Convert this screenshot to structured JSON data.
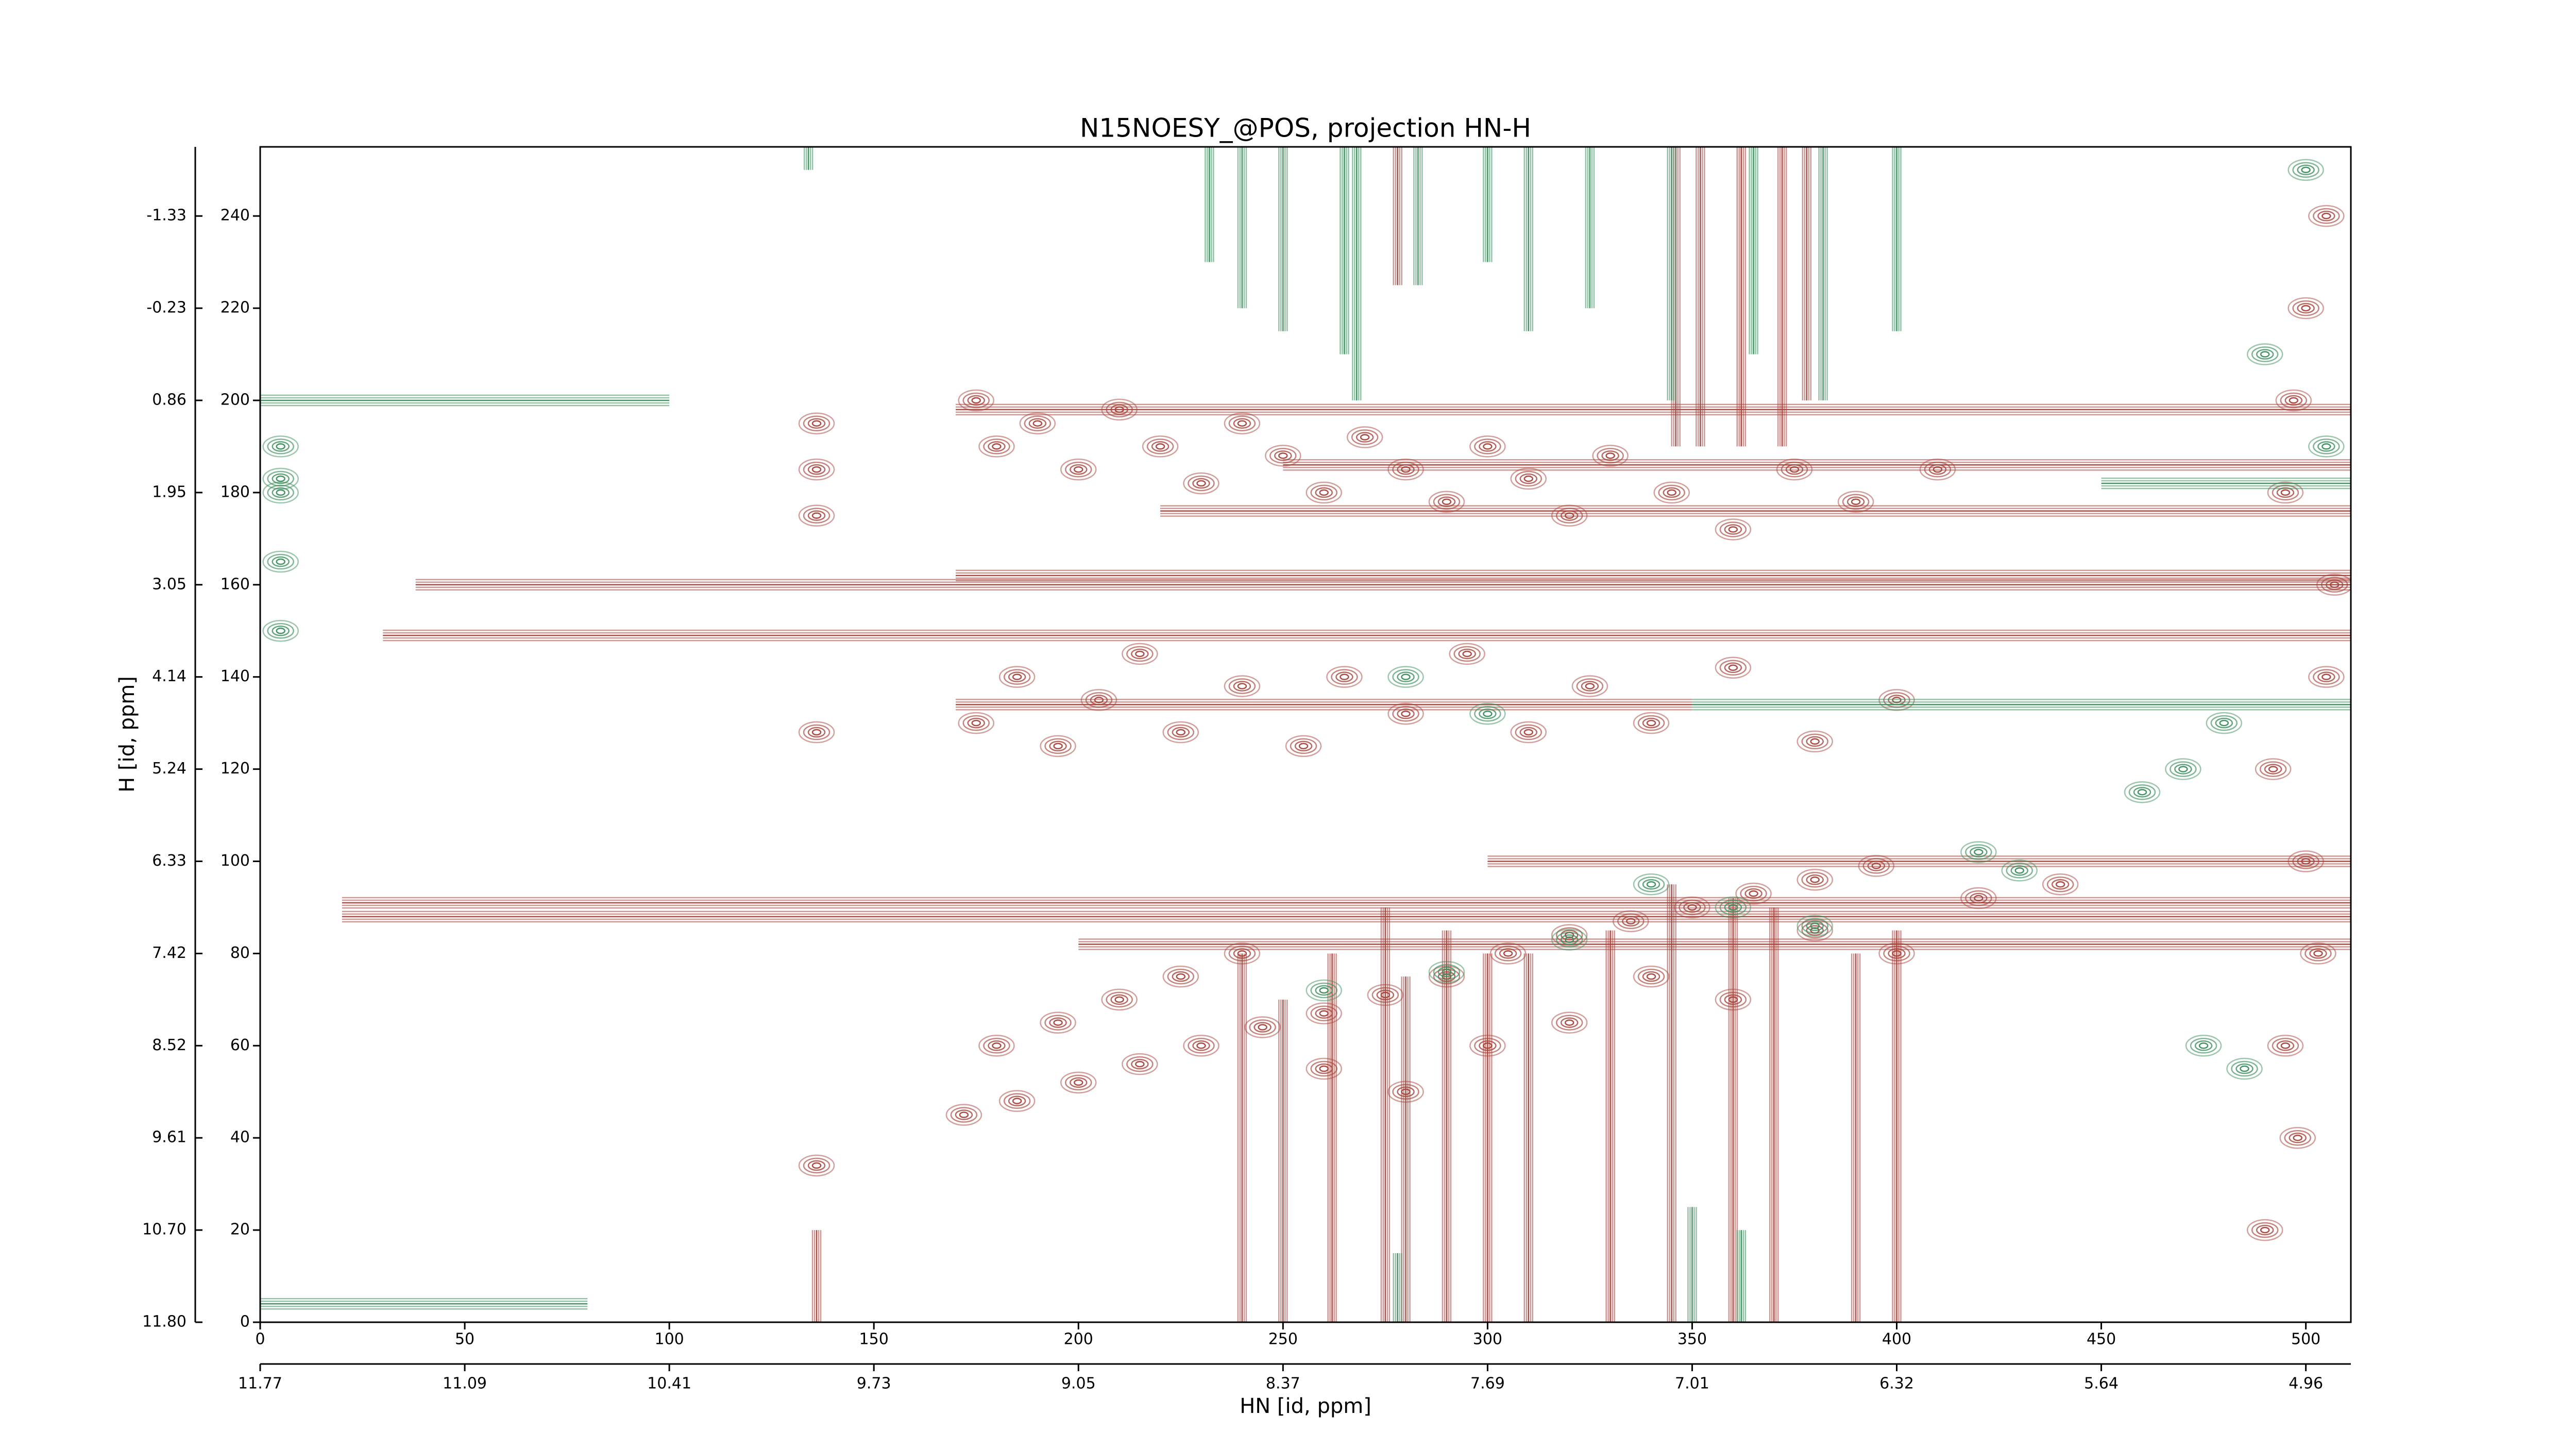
{
  "chart_data": {
    "type": "contour",
    "title": "N15NOESY_@POS, projection HN-H",
    "xlabel": "HN [id, ppm]",
    "ylabel": "H [id, ppm]",
    "xlim": [
      0,
      511
    ],
    "ylim": [
      0,
      255
    ],
    "xticks": [
      0,
      50,
      100,
      150,
      200,
      250,
      300,
      350,
      400,
      450,
      500
    ],
    "yticks": [
      0,
      20,
      40,
      60,
      80,
      100,
      120,
      140,
      160,
      180,
      200,
      220,
      240
    ],
    "x2ticks": [
      {
        "value": 0,
        "label": "11.77"
      },
      {
        "value": 50,
        "label": "11.09"
      },
      {
        "value": 100,
        "label": "10.41"
      },
      {
        "value": 150,
        "label": "9.73"
      },
      {
        "value": 200,
        "label": "9.05"
      },
      {
        "value": 250,
        "label": "8.37"
      },
      {
        "value": 300,
        "label": "7.69"
      },
      {
        "value": 350,
        "label": "7.01"
      },
      {
        "value": 400,
        "label": "6.32"
      },
      {
        "value": 450,
        "label": "5.64"
      },
      {
        "value": 500,
        "label": "4.96"
      }
    ],
    "y2ticks": [
      {
        "value": 0,
        "label": "11.80"
      },
      {
        "value": 20,
        "label": "10.70"
      },
      {
        "value": 40,
        "label": "9.61"
      },
      {
        "value": 60,
        "label": "8.52"
      },
      {
        "value": 80,
        "label": "7.42"
      },
      {
        "value": 100,
        "label": "6.33"
      },
      {
        "value": 120,
        "label": "5.24"
      },
      {
        "value": 140,
        "label": "4.14"
      },
      {
        "value": 160,
        "label": "3.05"
      },
      {
        "value": 180,
        "label": "1.95"
      },
      {
        "value": 200,
        "label": "0.86"
      },
      {
        "value": 220,
        "label": "-0.23"
      },
      {
        "value": 240,
        "label": "-1.33"
      }
    ],
    "contours": [
      {
        "color": "#a8423a",
        "peaks": {
          "x": [
            175,
            180,
            190,
            200,
            210,
            220,
            230,
            240,
            250,
            260,
            270,
            280,
            290,
            300,
            310,
            320,
            330,
            345,
            360,
            375,
            390,
            410,
            175,
            185,
            195,
            205,
            215,
            225,
            240,
            255,
            265,
            280,
            295,
            310,
            325,
            340,
            360,
            380,
            400,
            172,
            185,
            200,
            215,
            230,
            245,
            260,
            275,
            290,
            305,
            320,
            335,
            350,
            365,
            380,
            395,
            180,
            195,
            210,
            225,
            240,
            260,
            280,
            300,
            320,
            340,
            360,
            380,
            400,
            420,
            440,
            136,
            136,
            136,
            136,
            136,
            490,
            495,
            500,
            505,
            495,
            500,
            505,
            498,
            503,
            492,
            507,
            497
          ],
          "y": [
            200,
            190,
            195,
            185,
            198,
            190,
            182,
            195,
            188,
            180,
            192,
            185,
            178,
            190,
            183,
            175,
            188,
            180,
            172,
            185,
            178,
            185,
            130,
            140,
            125,
            135,
            145,
            128,
            138,
            125,
            140,
            132,
            145,
            128,
            138,
            130,
            142,
            126,
            135,
            45,
            48,
            52,
            56,
            60,
            64,
            67,
            71,
            75,
            80,
            84,
            87,
            90,
            93,
            96,
            99,
            60,
            65,
            70,
            75,
            80,
            55,
            50,
            60,
            65,
            75,
            70,
            85,
            80,
            92,
            95,
            34,
            128,
            175,
            185,
            195,
            20,
            60,
            100,
            140,
            180,
            220,
            240,
            40,
            80,
            120,
            160,
            200
          ]
        },
        "h_ridges": {
          "y": [
            160,
            162,
            149,
            91,
            88,
            198,
            186,
            176,
            134,
            100,
            82
          ],
          "x_from": [
            38,
            170,
            30,
            20,
            20,
            170,
            250,
            220,
            170,
            300,
            200
          ],
          "x_to": [
            511,
            511,
            511,
            511,
            511,
            511,
            511,
            511,
            350,
            511,
            511
          ]
        },
        "v_ridges": {
          "x": [
            240,
            250,
            262,
            275,
            280,
            290,
            300,
            310,
            330,
            345,
            360,
            370,
            390,
            400,
            278,
            346,
            352,
            362,
            372,
            378,
            136
          ],
          "y_from": [
            0,
            0,
            0,
            0,
            0,
            0,
            0,
            0,
            0,
            0,
            0,
            0,
            0,
            0,
            225,
            190,
            190,
            190,
            190,
            200,
            0
          ],
          "y_to": [
            80,
            70,
            80,
            90,
            75,
            85,
            80,
            80,
            85,
            95,
            92,
            90,
            80,
            85,
            255,
            255,
            255,
            255,
            255,
            255,
            20
          ]
        }
      },
      {
        "color": "#3a8f5c",
        "peaks": {
          "x": [
            5,
            5,
            5,
            5,
            5,
            280,
            300,
            340,
            360,
            380,
            260,
            290,
            320,
            420,
            430,
            470,
            480,
            485,
            475,
            460,
            500,
            490,
            505
          ],
          "y": [
            190,
            183,
            180,
            165,
            150,
            140,
            132,
            95,
            90,
            86,
            72,
            76,
            83,
            102,
            98,
            120,
            130,
            55,
            60,
            115,
            250,
            210,
            190
          ]
        },
        "h_ridges": {
          "y": [
            200,
            134,
            182,
            4
          ],
          "x_from": [
            0,
            350,
            450,
            0
          ],
          "x_to": [
            100,
            511,
            511,
            80
          ]
        },
        "v_ridges": {
          "x": [
            232,
            240,
            250,
            265,
            268,
            283,
            300,
            310,
            325,
            345,
            365,
            382,
            400,
            134,
            350,
            362,
            278
          ],
          "y_from": [
            230,
            220,
            215,
            210,
            200,
            225,
            230,
            215,
            220,
            200,
            210,
            200,
            215,
            250,
            0,
            0,
            0
          ],
          "y_to": [
            255,
            255,
            255,
            255,
            255,
            255,
            255,
            255,
            255,
            255,
            255,
            255,
            255,
            255,
            25,
            20,
            15
          ]
        }
      }
    ]
  }
}
